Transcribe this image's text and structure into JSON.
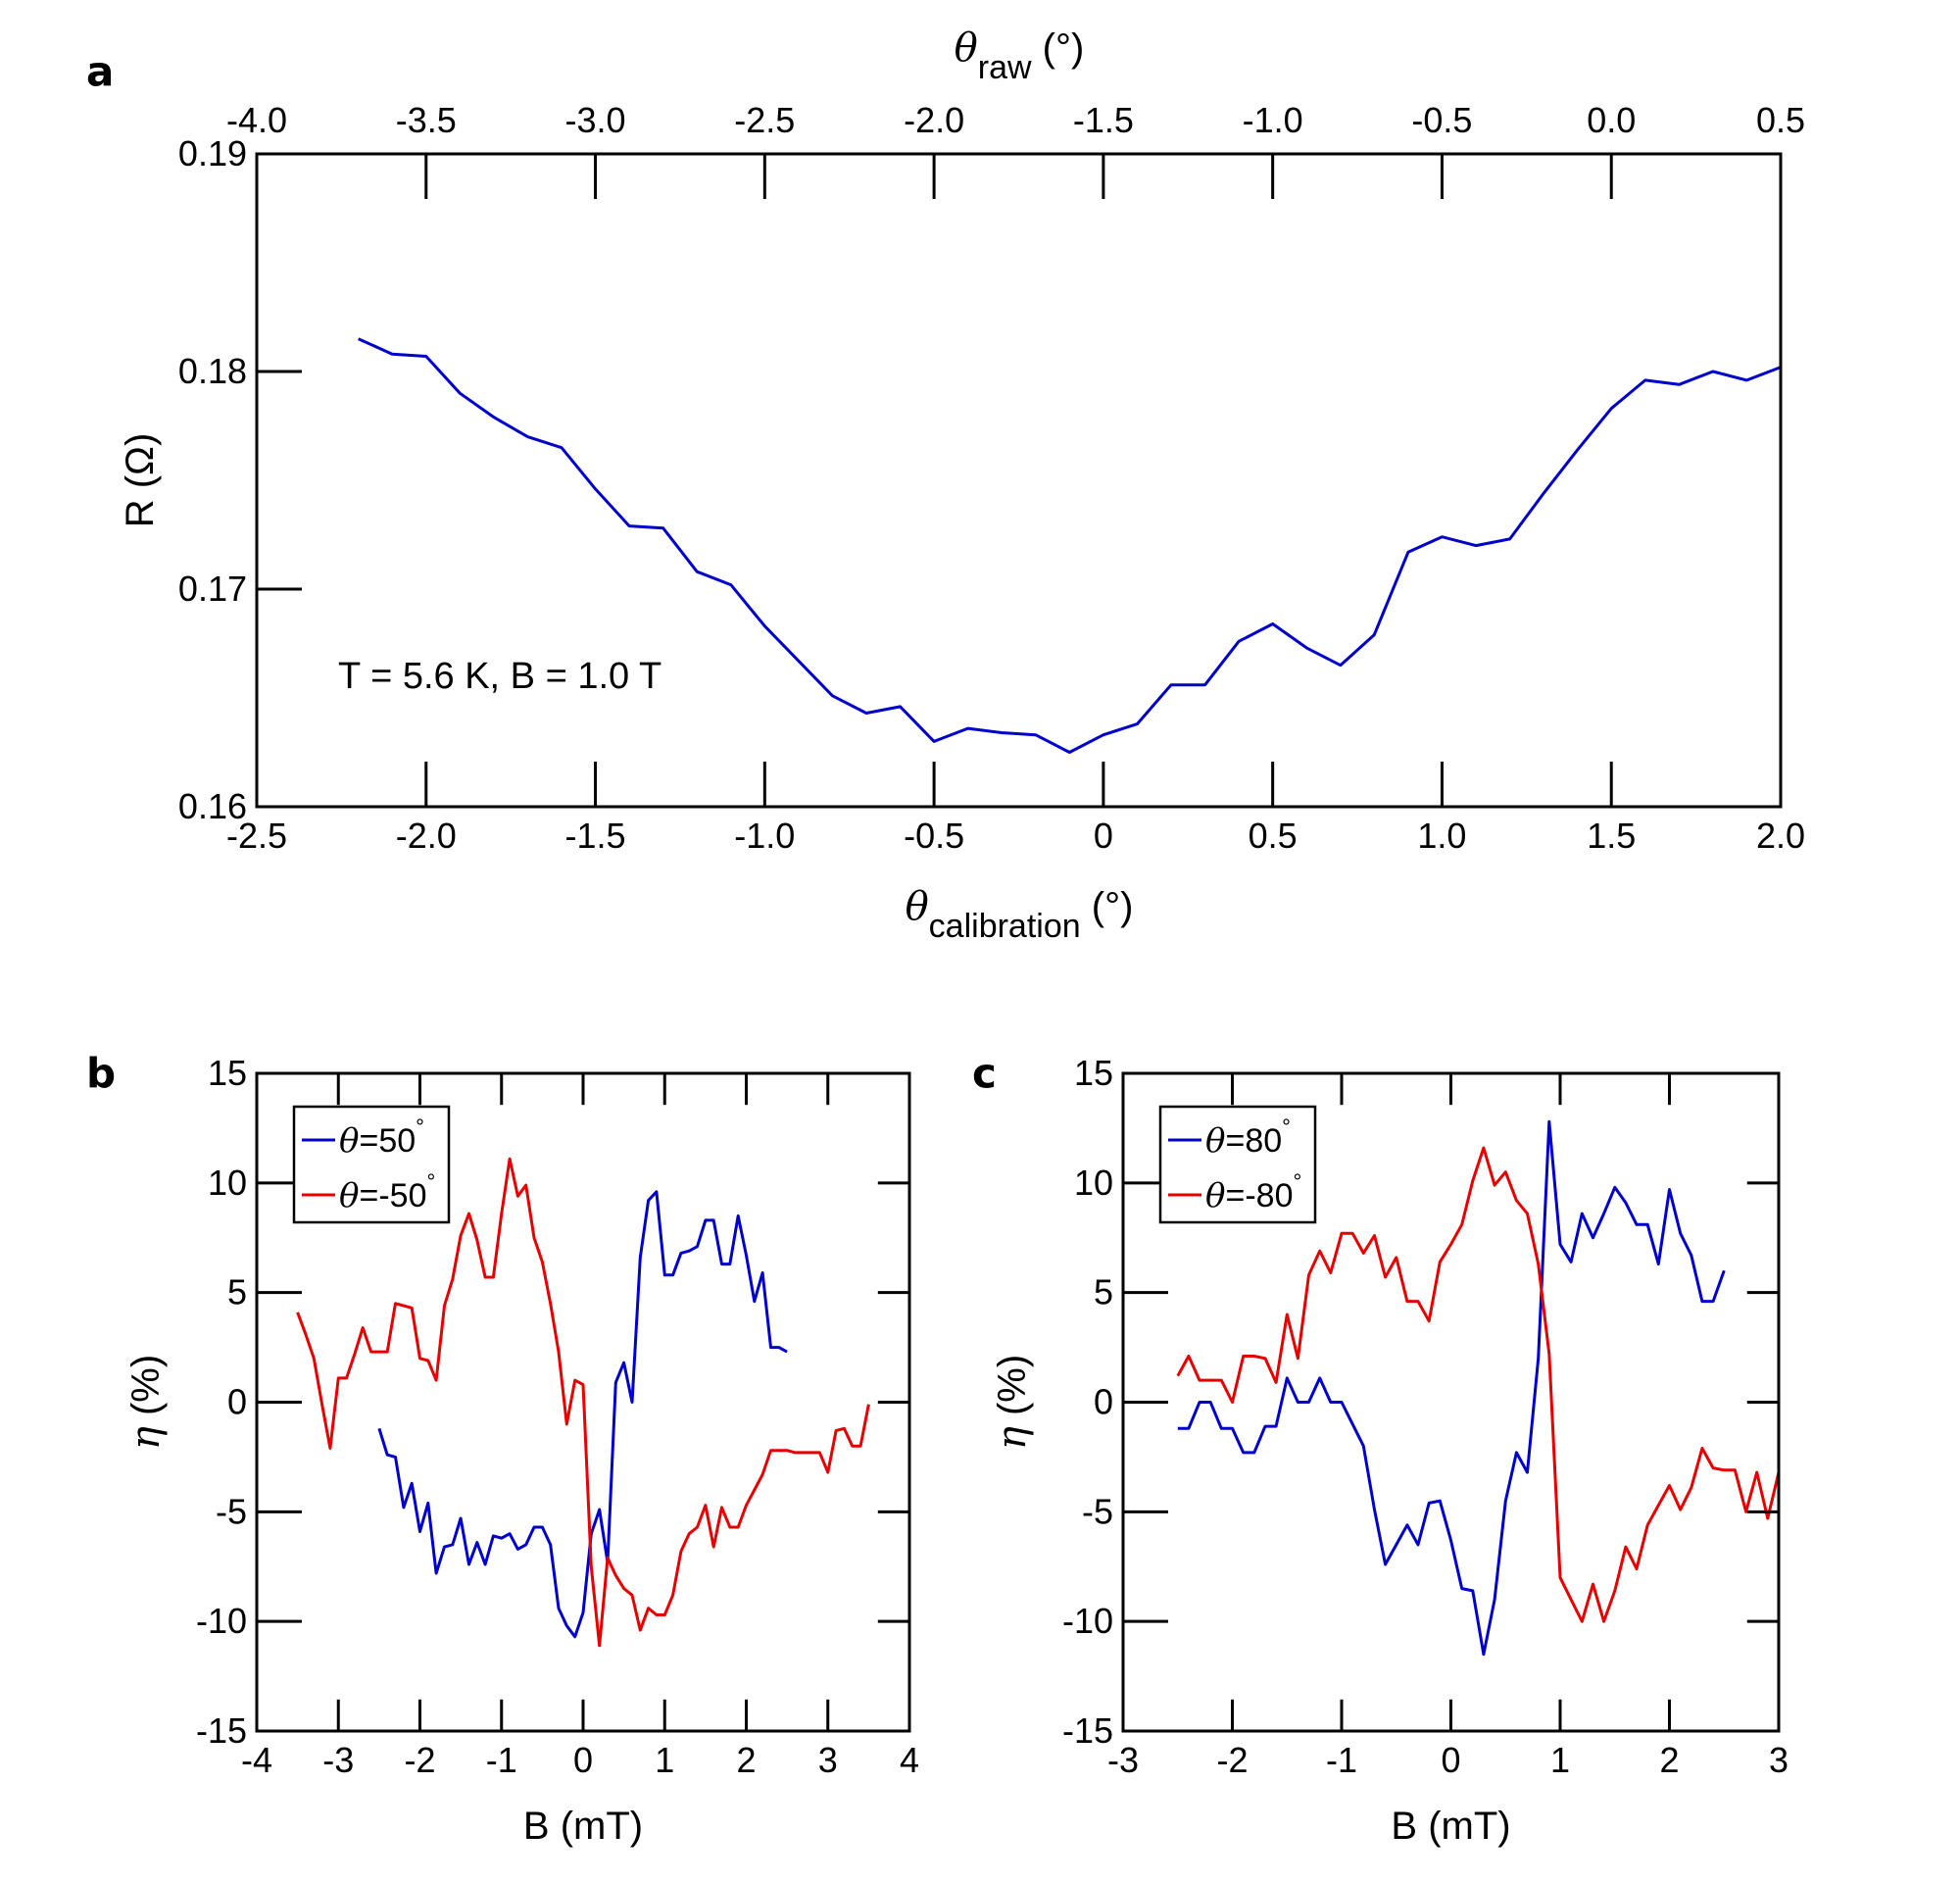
{
  "chart_data": [
    {
      "id": "a",
      "type": "line",
      "panel_label": "a",
      "annotation": "T = 5.6 K, B = 1.0 T",
      "ylabel": "R (Ω)",
      "xlabel_symbol": "θ",
      "xlabel_sub": "calibration",
      "xlabel_unit": "(°)",
      "top_xlabel_symbol": "θ",
      "top_xlabel_sub": "raw",
      "top_xlabel_unit": "(°)",
      "xlim": [
        -2.5,
        2.0
      ],
      "ylim": [
        0.16,
        0.19
      ],
      "xticks": [
        -2.5,
        -2.0,
        -1.5,
        -1.0,
        -0.5,
        0,
        0.5,
        1.0,
        1.5,
        2.0
      ],
      "xtick_labels": [
        "-2.5",
        "-2.0",
        "-1.5",
        "-1.0",
        "-0.5",
        "0",
        "0.5",
        "1.0",
        "1.5",
        "2.0"
      ],
      "yticks": [
        0.16,
        0.17,
        0.18,
        0.19
      ],
      "ytick_labels": [
        "0.16",
        "0.17",
        "0.18",
        "0.19"
      ],
      "top_xlim": [
        -4.0,
        0.5
      ],
      "top_xticks": [
        -4.0,
        -3.5,
        -3.0,
        -2.5,
        -2.0,
        -1.5,
        -1.0,
        -0.5,
        0.0,
        0.5
      ],
      "top_xtick_labels": [
        "-4.0",
        "-3.5",
        "-3.0",
        "-2.5",
        "-2.0",
        "-1.5",
        "-1.0",
        "-0.5",
        "0.0",
        "0.5"
      ],
      "series": [
        {
          "name": "R",
          "color": "#0000cc",
          "x": [
            -2.2,
            -2.1,
            -2.0,
            -1.9,
            -1.8,
            -1.7,
            -1.6,
            -1.5,
            -1.4,
            -1.3,
            -1.2,
            -1.1,
            -1.0,
            -0.9,
            -0.8,
            -0.7,
            -0.6,
            -0.5,
            -0.4,
            -0.3,
            -0.2,
            -0.1,
            0.0,
            0.1,
            0.2,
            0.3,
            0.4,
            0.5,
            0.6,
            0.7,
            0.8,
            0.9,
            1.0,
            1.1,
            1.2,
            1.3,
            1.4,
            1.5,
            1.6,
            1.7,
            1.8,
            1.9,
            2.0
          ],
          "y": [
            0.1815,
            0.1808,
            0.1807,
            0.179,
            0.1779,
            0.177,
            0.1765,
            0.1746,
            0.1729,
            0.1728,
            0.1708,
            0.1702,
            0.1683,
            0.1667,
            0.1651,
            0.1643,
            0.1646,
            0.163,
            0.1636,
            0.1634,
            0.1633,
            0.1625,
            0.1633,
            0.1638,
            0.1656,
            0.1656,
            0.1676,
            0.1684,
            0.1673,
            0.1665,
            0.1679,
            0.1717,
            0.1724,
            0.172,
            0.1723,
            0.1744,
            0.1764,
            0.1783,
            0.1796,
            0.1794,
            0.18,
            0.1796,
            0.1802
          ]
        }
      ]
    },
    {
      "id": "b",
      "type": "line",
      "panel_label": "b",
      "xlabel": "B (mT)",
      "ylabel_symbol": "η",
      "ylabel_unit": "(%)",
      "xlim": [
        -4,
        4
      ],
      "ylim": [
        -15,
        15
      ],
      "xticks": [
        -4,
        -3,
        -2,
        -1,
        0,
        1,
        2,
        3,
        4
      ],
      "xtick_labels": [
        "-4",
        "-3",
        "-2",
        "-1",
        "0",
        "1",
        "2",
        "3",
        "4"
      ],
      "yticks": [
        -15,
        -10,
        -5,
        0,
        5,
        10,
        15
      ],
      "ytick_labels": [
        "-15",
        "-10",
        "-5",
        "0",
        "5",
        "10",
        "15"
      ],
      "legend_position": "top-left",
      "series": [
        {
          "name_symbol": "θ",
          "name_value": "=50",
          "name_unit": "°",
          "color": "#0000cc",
          "x": [
            -2.5,
            -2.4,
            -2.3,
            -2.2,
            -2.1,
            -2.0,
            -1.9,
            -1.8,
            -1.7,
            -1.6,
            -1.5,
            -1.4,
            -1.3,
            -1.2,
            -1.1,
            -1.0,
            -0.9,
            -0.8,
            -0.7,
            -0.6,
            -0.5,
            -0.4,
            -0.3,
            -0.2,
            -0.1,
            0.0,
            0.1,
            0.2,
            0.3,
            0.4,
            0.5,
            0.6,
            0.7,
            0.8,
            0.9,
            1.0,
            1.1,
            1.2,
            1.3,
            1.4,
            1.5,
            1.6,
            1.7,
            1.8,
            1.9,
            2.0,
            2.1,
            2.2,
            2.3,
            2.4,
            2.5
          ],
          "y": [
            -1.2,
            -2.4,
            -2.5,
            -4.8,
            -3.7,
            -5.9,
            -4.6,
            -7.8,
            -6.6,
            -6.5,
            -5.3,
            -7.4,
            -6.4,
            -7.4,
            -6.1,
            -6.2,
            -6.0,
            -6.7,
            -6.5,
            -5.7,
            -5.7,
            -6.5,
            -9.4,
            -10.2,
            -10.7,
            -9.6,
            -6.0,
            -4.9,
            -7.3,
            0.9,
            1.8,
            0.0,
            6.6,
            9.2,
            9.6,
            5.8,
            5.8,
            6.8,
            6.9,
            7.1,
            8.3,
            8.3,
            6.3,
            6.3,
            8.5,
            6.7,
            4.6,
            5.9,
            2.5,
            2.5,
            2.3
          ]
        },
        {
          "name_symbol": "θ",
          "name_value": "=-50",
          "name_unit": "°",
          "color": "#e60000",
          "x": [
            -3.5,
            -3.4,
            -3.3,
            -3.2,
            -3.1,
            -3.0,
            -2.9,
            -2.8,
            -2.7,
            -2.6,
            -2.5,
            -2.4,
            -2.3,
            -2.2,
            -2.1,
            -2.0,
            -1.9,
            -1.8,
            -1.7,
            -1.6,
            -1.5,
            -1.4,
            -1.3,
            -1.2,
            -1.1,
            -1.0,
            -0.9,
            -0.8,
            -0.7,
            -0.6,
            -0.5,
            -0.4,
            -0.3,
            -0.2,
            -0.1,
            0.0,
            0.1,
            0.2,
            0.3,
            0.4,
            0.5,
            0.6,
            0.7,
            0.8,
            0.9,
            1.0,
            1.1,
            1.2,
            1.3,
            1.4,
            1.5,
            1.6,
            1.7,
            1.8,
            1.9,
            2.0,
            2.1,
            2.2,
            2.3,
            2.4,
            2.5,
            2.6,
            2.7,
            2.8,
            2.9,
            3.0,
            3.1,
            3.2,
            3.3,
            3.4,
            3.5
          ],
          "y": [
            4.1,
            3.1,
            2.0,
            -0.1,
            -2.1,
            1.1,
            1.1,
            2.2,
            3.4,
            2.3,
            2.3,
            2.3,
            4.5,
            4.4,
            4.3,
            2.0,
            1.9,
            1.0,
            4.4,
            5.6,
            7.6,
            8.6,
            7.4,
            5.7,
            5.7,
            8.6,
            11.1,
            9.4,
            9.9,
            7.5,
            6.4,
            4.5,
            2.3,
            -1.0,
            1.0,
            0.8,
            -7.5,
            -11.1,
            -7.1,
            -7.9,
            -8.5,
            -8.8,
            -10.4,
            -9.4,
            -9.7,
            -9.7,
            -8.8,
            -6.8,
            -6.0,
            -5.7,
            -4.7,
            -6.6,
            -4.8,
            -5.7,
            -5.7,
            -4.7,
            -4.0,
            -3.3,
            -2.2,
            -2.2,
            -2.2,
            -2.3,
            -2.3,
            -2.3,
            -2.3,
            -3.2,
            -1.3,
            -1.2,
            -2.0,
            -2.0,
            -0.1
          ]
        }
      ]
    },
    {
      "id": "c",
      "type": "line",
      "panel_label": "c",
      "xlabel": "B (mT)",
      "ylabel_symbol": "η",
      "ylabel_unit": "(%)",
      "xlim": [
        -3,
        3
      ],
      "ylim": [
        -15,
        15
      ],
      "xticks": [
        -3,
        -2,
        -1,
        0,
        1,
        2,
        3
      ],
      "xtick_labels": [
        "-3",
        "-2",
        "-1",
        "0",
        "1",
        "2",
        "3"
      ],
      "yticks": [
        -15,
        -10,
        -5,
        0,
        5,
        10,
        15
      ],
      "ytick_labels": [
        "-15",
        "-10",
        "-5",
        "0",
        "5",
        "10",
        "15"
      ],
      "legend_position": "top-left",
      "series": [
        {
          "name_symbol": "θ",
          "name_value": "=80",
          "name_unit": "°",
          "color": "#0000cc",
          "x": [
            -2.5,
            -2.4,
            -2.3,
            -2.2,
            -2.1,
            -2.0,
            -1.9,
            -1.8,
            -1.7,
            -1.6,
            -1.5,
            -1.4,
            -1.3,
            -1.2,
            -1.1,
            -1.0,
            -0.9,
            -0.8,
            -0.7,
            -0.6,
            -0.5,
            -0.4,
            -0.3,
            -0.2,
            -0.1,
            0.0,
            0.1,
            0.2,
            0.3,
            0.4,
            0.5,
            0.6,
            0.7,
            0.8,
            0.9,
            1.0,
            1.1,
            1.2,
            1.3,
            1.4,
            1.5,
            1.6,
            1.7,
            1.8,
            1.9,
            2.0,
            2.1,
            2.2,
            2.3,
            2.4,
            2.5
          ],
          "y": [
            -1.2,
            -1.2,
            0.0,
            0.0,
            -1.2,
            -1.2,
            -2.3,
            -2.3,
            -1.1,
            -1.1,
            1.1,
            0.0,
            0.0,
            1.1,
            0.0,
            0.0,
            -1.0,
            -2.0,
            -4.9,
            -7.4,
            -6.5,
            -5.6,
            -6.5,
            -4.6,
            -4.5,
            -6.3,
            -8.5,
            -8.6,
            -11.5,
            -9.0,
            -4.5,
            -2.3,
            -3.2,
            2.0,
            12.8,
            7.2,
            6.4,
            8.6,
            7.5,
            8.6,
            9.8,
            9.1,
            8.1,
            8.1,
            6.3,
            9.7,
            7.7,
            6.7,
            4.6,
            4.6,
            6.0
          ]
        },
        {
          "name_symbol": "θ",
          "name_value": "=-80",
          "name_unit": "°",
          "color": "#e60000",
          "x": [
            -2.5,
            -2.4,
            -2.3,
            -2.2,
            -2.1,
            -2.0,
            -1.9,
            -1.8,
            -1.7,
            -1.6,
            -1.5,
            -1.4,
            -1.3,
            -1.2,
            -1.1,
            -1.0,
            -0.9,
            -0.8,
            -0.7,
            -0.6,
            -0.5,
            -0.4,
            -0.3,
            -0.2,
            -0.1,
            0.0,
            0.1,
            0.2,
            0.3,
            0.4,
            0.5,
            0.6,
            0.7,
            0.8,
            0.9,
            1.0,
            1.1,
            1.2,
            1.3,
            1.4,
            1.5,
            1.6,
            1.7,
            1.8,
            1.9,
            2.0,
            2.1,
            2.2,
            2.3,
            2.4,
            2.5,
            2.6,
            2.7,
            2.8,
            2.9,
            3.0
          ],
          "y": [
            1.2,
            2.1,
            1.0,
            1.0,
            1.0,
            0.0,
            2.1,
            2.1,
            2.0,
            0.9,
            4.0,
            2.0,
            5.8,
            6.9,
            5.9,
            7.7,
            7.7,
            6.8,
            7.6,
            5.7,
            6.6,
            4.6,
            4.6,
            3.7,
            6.4,
            7.2,
            8.1,
            10.1,
            11.6,
            9.9,
            10.5,
            9.2,
            8.6,
            6.3,
            2.2,
            -8.0,
            -9.0,
            -10.0,
            -8.3,
            -10.0,
            -8.6,
            -6.6,
            -7.6,
            -5.6,
            -4.7,
            -3.8,
            -4.9,
            -3.9,
            -2.1,
            -3.0,
            -3.1,
            -3.1,
            -5.0,
            -3.2,
            -5.3,
            -3.2
          ]
        }
      ]
    }
  ]
}
